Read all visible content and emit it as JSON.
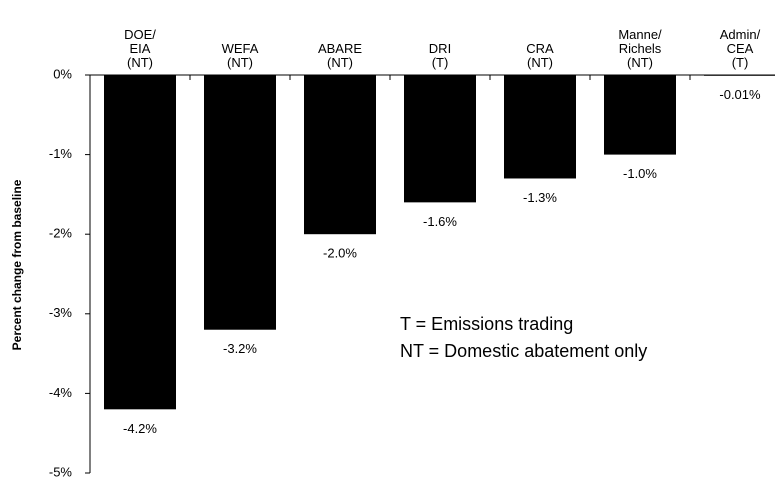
{
  "chart_data": {
    "type": "bar",
    "ylabel": "Percent change from baseline",
    "categories": [
      "DOE/\nEIA\n(NT)",
      "WEFA\n(NT)",
      "ABARE\n(NT)",
      "DRI\n(T)",
      "CRA\n(NT)",
      "Manne/\nRichels\n(NT)",
      "Admin/\nCEA\n(T)"
    ],
    "values": [
      -4.2,
      -3.2,
      -2.0,
      -1.6,
      -1.3,
      -1.0,
      -0.01
    ],
    "value_labels": [
      "-4.2%",
      "-3.2%",
      "-2.0%",
      "-1.6%",
      "-1.3%",
      "-1.0%",
      "-0.01%"
    ],
    "color": "#000000",
    "ylim": [
      -5,
      0
    ],
    "yticks": [
      {
        "value": 0,
        "label": "0%"
      },
      {
        "value": -1,
        "label": "-1%"
      },
      {
        "value": -2,
        "label": "-2%"
      },
      {
        "value": -3,
        "label": "-3%"
      },
      {
        "value": -4,
        "label": "-4%"
      },
      {
        "value": -5,
        "label": "-5%"
      }
    ],
    "annotations": [
      "T = Emissions trading",
      "NT = Domestic abatement only"
    ]
  }
}
